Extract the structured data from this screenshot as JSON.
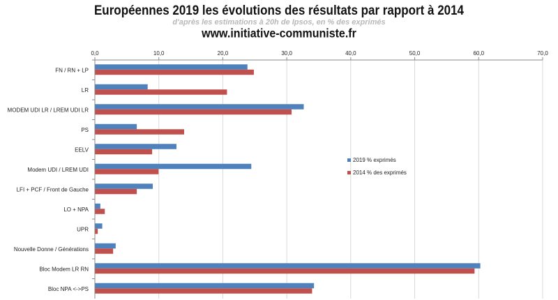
{
  "header": {
    "title": "Européennes  2019 les évolutions  des résultats  par rapport  à 2014",
    "subtitle": "d'après les estimations à 20h de Ipsos, en % des exprimés",
    "site": "www.initiative-communiste.fr"
  },
  "colors": {
    "series_2019": "#4F81BD",
    "series_2014": "#C0504D",
    "grid": "#d9d9d9"
  },
  "chart_data": {
    "type": "bar",
    "orientation": "horizontal",
    "title": "Européennes  2019 les évolutions  des résultats  par rapport  à 2014",
    "subtitle": "d'après les estimations à 20h de Ipsos, en % des exprimés",
    "categories": [
      "FN / RN + LP",
      "LR",
      "MODEM UDI LR / LREM UDI LR",
      "PS",
      "EELV",
      "Modem UDI / LREM UDI",
      "LFI + PCF / Front de Gauche",
      "LO + NPA",
      "UPR",
      "Nouvelle Donne  / Générations",
      "Bloc Modem LR RN",
      "Bloc NPA <->PS"
    ],
    "series": [
      {
        "name": "2019 % exprimés",
        "values": [
          23.8,
          8.2,
          32.6,
          6.5,
          12.7,
          24.4,
          9.0,
          0.8,
          1.1,
          3.2,
          60.2,
          34.2
        ]
      },
      {
        "name": "2014 % des exprimés",
        "values": [
          24.8,
          20.6,
          30.7,
          13.9,
          8.9,
          9.9,
          6.5,
          1.5,
          0.4,
          2.8,
          59.3,
          33.9
        ]
      }
    ],
    "xlim": [
      0,
      70
    ],
    "xticks": [
      "0,0",
      "10,0",
      "20,0",
      "30,0",
      "40,0",
      "50,0",
      "60,0",
      "70,0"
    ],
    "xtick_values": [
      0,
      10,
      20,
      30,
      40,
      50,
      60,
      70
    ],
    "axis_position": "top",
    "grid": true,
    "legend_position": "inside-right"
  }
}
